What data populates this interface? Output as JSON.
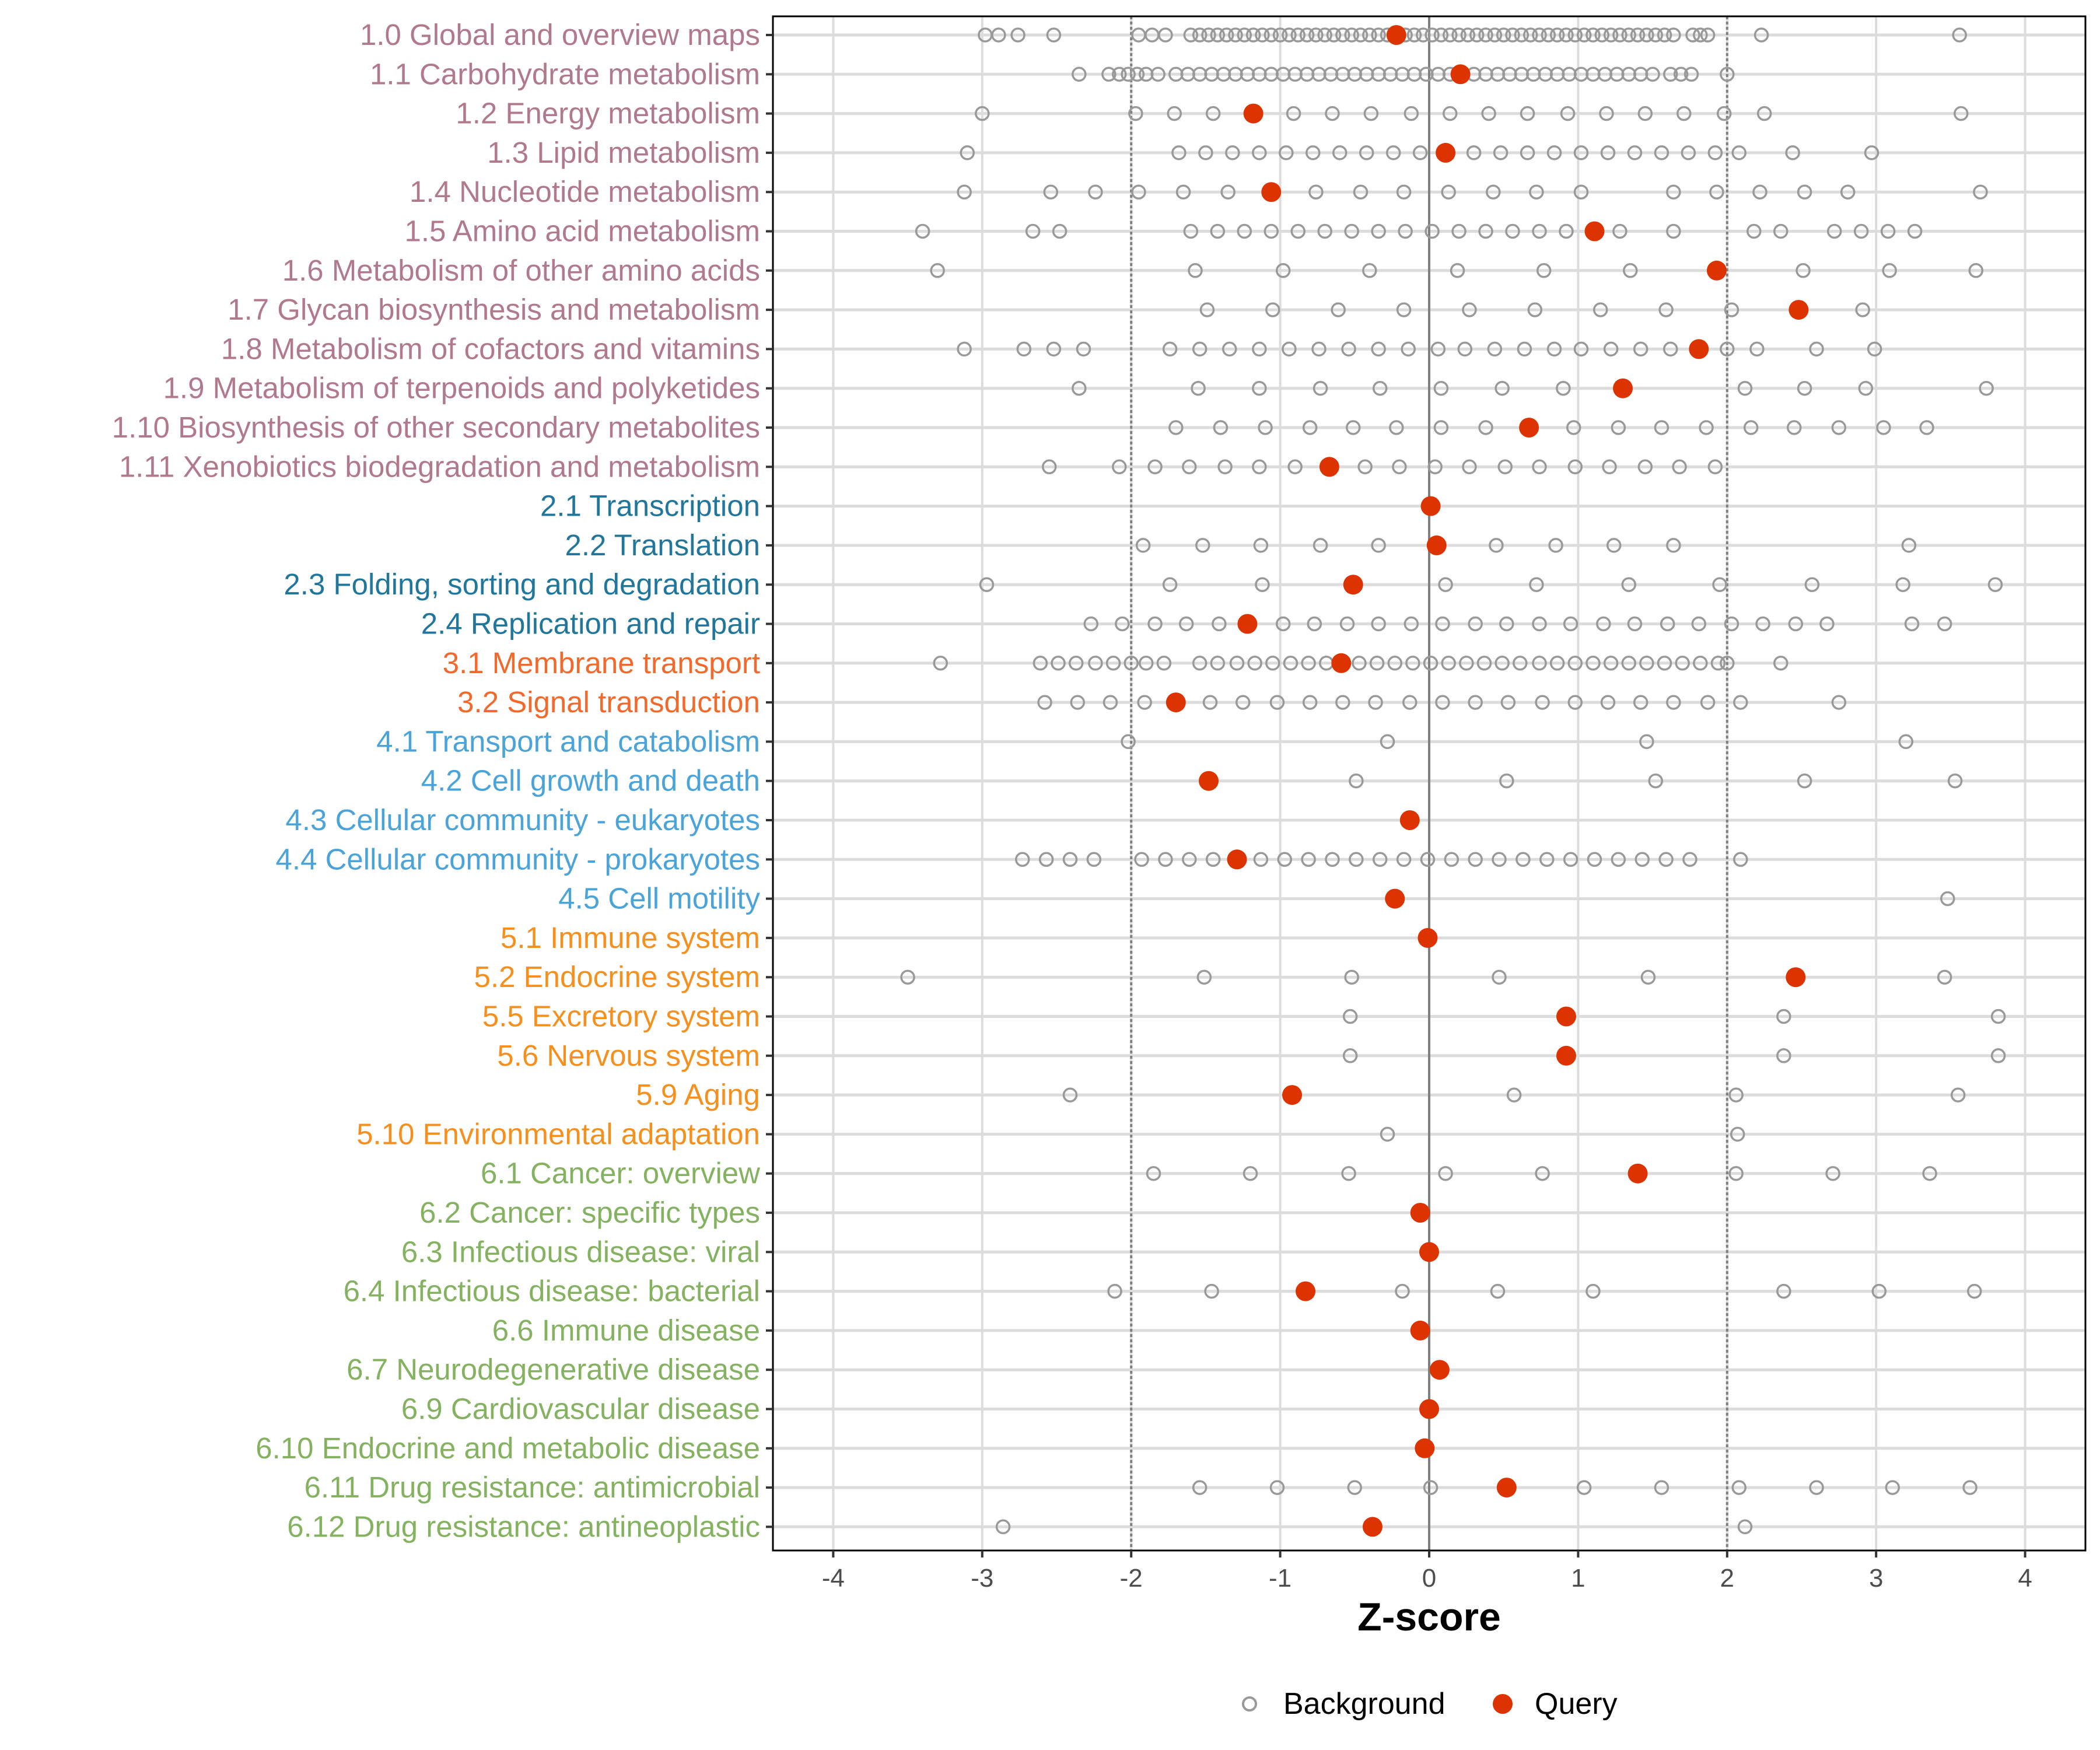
{
  "chart_data": {
    "type": "scatter",
    "title": "",
    "xlabel": "Z-score",
    "ylabel": "",
    "xlim": [
      -4.2,
      4.2
    ],
    "x_ticks": [
      -4,
      -3,
      -2,
      -1,
      0,
      1,
      2,
      3,
      4
    ],
    "x_tick_labels": [
      "-4",
      "-3",
      "-2",
      "-1",
      "0",
      "1",
      "2",
      "3",
      "4"
    ],
    "reference_lines": [
      -2,
      0,
      2
    ],
    "grid": true,
    "legend": {
      "position": "bottom",
      "entries": [
        "Background",
        "Query"
      ]
    },
    "colors": {
      "background_point": "#999999",
      "query_point": "#dd3300",
      "groups": {
        "1": "#b07a8c",
        "2": "#21769b",
        "3": "#f2692c",
        "4": "#4aa3d9",
        "5": "#f5901e",
        "6": "#84b260"
      }
    },
    "categories": [
      {
        "label": "1.0 Global and overview maps",
        "group": "1",
        "query": -0.22,
        "background": [
          -2.98,
          -2.89,
          -2.76,
          -2.52,
          -1.95,
          -1.86,
          -1.77,
          -1.6,
          -1.54,
          -1.48,
          -1.42,
          -1.36,
          -1.3,
          -1.24,
          -1.18,
          -1.12,
          -1.06,
          -1.0,
          -0.94,
          -0.88,
          -0.82,
          -0.76,
          -0.7,
          -0.64,
          -0.58,
          -0.52,
          -0.46,
          -0.4,
          -0.34,
          -0.28,
          -0.22,
          -0.16,
          -0.1,
          -0.04,
          0.02,
          0.08,
          0.14,
          0.2,
          0.26,
          0.32,
          0.38,
          0.44,
          0.5,
          0.56,
          0.62,
          0.68,
          0.74,
          0.8,
          0.86,
          0.92,
          0.98,
          1.04,
          1.1,
          1.16,
          1.22,
          1.28,
          1.34,
          1.4,
          1.46,
          1.52,
          1.58,
          1.64,
          1.77,
          1.82,
          1.87,
          2.23,
          3.56
        ]
      },
      {
        "label": "1.1 Carbohydrate metabolism",
        "group": "1",
        "query": 0.21,
        "background": [
          -2.35,
          -2.15,
          -2.08,
          -2.02,
          -1.96,
          -1.9,
          -1.82,
          -1.7,
          -1.62,
          -1.54,
          -1.46,
          -1.38,
          -1.3,
          -1.22,
          -1.14,
          -1.06,
          -0.98,
          -0.9,
          -0.82,
          -0.74,
          -0.66,
          -0.58,
          -0.5,
          -0.42,
          -0.34,
          -0.26,
          -0.18,
          -0.1,
          -0.02,
          0.06,
          0.14,
          0.22,
          0.3,
          0.38,
          0.46,
          0.54,
          0.62,
          0.7,
          0.78,
          0.86,
          0.94,
          1.02,
          1.1,
          1.18,
          1.26,
          1.34,
          1.42,
          1.5,
          1.62,
          1.69,
          1.76,
          2.0
        ]
      },
      {
        "label": "1.2 Energy metabolism",
        "group": "1",
        "query": -1.18,
        "background": [
          -3.0,
          -1.97,
          -1.71,
          -1.45,
          -1.18,
          -0.91,
          -0.65,
          -0.39,
          -0.12,
          0.14,
          0.4,
          0.66,
          0.93,
          1.19,
          1.45,
          1.71,
          1.98,
          2.25,
          3.57
        ]
      },
      {
        "label": "1.3 Lipid metabolism",
        "group": "1",
        "query": 0.11,
        "background": [
          -3.1,
          -1.68,
          -1.5,
          -1.32,
          -1.14,
          -0.96,
          -0.78,
          -0.6,
          -0.42,
          -0.24,
          -0.06,
          0.12,
          0.3,
          0.48,
          0.66,
          0.84,
          1.02,
          1.2,
          1.38,
          1.56,
          1.74,
          1.92,
          2.08,
          2.44,
          2.97
        ]
      },
      {
        "label": "1.4 Nucleotide metabolism",
        "group": "1",
        "query": -1.06,
        "background": [
          -3.12,
          -2.54,
          -2.24,
          -1.95,
          -1.65,
          -1.35,
          -1.06,
          -0.76,
          -0.46,
          -0.17,
          0.13,
          0.43,
          0.72,
          1.02,
          1.64,
          1.93,
          2.22,
          2.52,
          2.81,
          3.7
        ]
      },
      {
        "label": "1.5 Amino acid metabolism",
        "group": "1",
        "query": 1.11,
        "background": [
          -3.4,
          -2.66,
          -2.48,
          -1.6,
          -1.42,
          -1.24,
          -1.06,
          -0.88,
          -0.7,
          -0.52,
          -0.34,
          -0.16,
          0.02,
          0.2,
          0.38,
          0.56,
          0.74,
          0.92,
          1.28,
          1.64,
          2.18,
          2.36,
          2.72,
          2.9,
          3.08,
          3.26
        ]
      },
      {
        "label": "1.6 Metabolism of other amino acids",
        "group": "1",
        "query": 1.93,
        "background": [
          -3.3,
          -1.57,
          -0.98,
          -0.4,
          0.19,
          0.77,
          1.35,
          1.93,
          2.51,
          3.09,
          3.67
        ]
      },
      {
        "label": "1.7 Glycan biosynthesis and metabolism",
        "group": "1",
        "query": 2.48,
        "background": [
          -1.49,
          -1.05,
          -0.61,
          -0.17,
          0.27,
          0.71,
          1.15,
          1.59,
          2.03,
          2.47,
          2.91
        ]
      },
      {
        "label": "1.8 Metabolism of cofactors and vitamins",
        "group": "1",
        "query": 1.81,
        "background": [
          -3.12,
          -2.72,
          -2.52,
          -2.32,
          -1.74,
          -1.54,
          -1.34,
          -1.14,
          -0.94,
          -0.74,
          -0.54,
          -0.34,
          -0.14,
          0.06,
          0.24,
          0.44,
          0.64,
          0.84,
          1.02,
          1.22,
          1.42,
          1.62,
          2.0,
          2.2,
          2.6,
          2.99
        ]
      },
      {
        "label": "1.9 Metabolism of terpenoids and polyketides",
        "group": "1",
        "query": 1.3,
        "background": [
          -2.35,
          -1.55,
          -1.14,
          -0.73,
          -0.33,
          0.08,
          0.49,
          0.9,
          2.12,
          2.52,
          2.93,
          3.74
        ]
      },
      {
        "label": "1.10 Biosynthesis of other secondary metabolites",
        "group": "1",
        "query": 0.67,
        "background": [
          -1.7,
          -1.4,
          -1.1,
          -0.8,
          -0.51,
          -0.22,
          0.08,
          0.38,
          0.97,
          1.27,
          1.56,
          1.86,
          2.16,
          2.45,
          2.75,
          3.05,
          3.34
        ]
      },
      {
        "label": "1.11 Xenobiotics biodegradation and metabolism",
        "group": "1",
        "query": -0.67,
        "background": [
          -2.55,
          -2.08,
          -1.84,
          -1.61,
          -1.37,
          -1.14,
          -0.9,
          -0.43,
          -0.2,
          0.04,
          0.27,
          0.51,
          0.74,
          0.98,
          1.21,
          1.45,
          1.68,
          1.92
        ]
      },
      {
        "label": "2.1 Transcription",
        "group": "2",
        "query": 0.01,
        "background": []
      },
      {
        "label": "2.2 Translation",
        "group": "2",
        "query": 0.05,
        "background": [
          -1.92,
          -1.52,
          -1.13,
          -0.73,
          -0.34,
          0.45,
          0.85,
          1.24,
          1.64,
          3.22
        ]
      },
      {
        "label": "2.3 Folding, sorting and degradation",
        "group": "2",
        "query": -0.51,
        "background": [
          -2.97,
          -1.74,
          -1.12,
          0.11,
          0.72,
          1.34,
          1.95,
          2.57,
          3.18,
          3.8
        ]
      },
      {
        "label": "2.4 Replication and repair",
        "group": "2",
        "query": -1.22,
        "background": [
          -2.27,
          -2.06,
          -1.84,
          -1.63,
          -1.41,
          -0.98,
          -0.77,
          -0.55,
          -0.34,
          -0.12,
          0.09,
          0.31,
          0.52,
          0.74,
          0.95,
          1.17,
          1.38,
          1.6,
          1.81,
          2.03,
          2.24,
          2.46,
          2.67,
          3.24,
          3.46
        ]
      },
      {
        "label": "3.1 Membrane transport",
        "group": "3",
        "query": -0.59,
        "background": [
          -3.28,
          -2.61,
          -2.49,
          -2.37,
          -2.24,
          -2.12,
          -2.0,
          -1.9,
          -1.78,
          -1.54,
          -1.42,
          -1.29,
          -1.17,
          -1.05,
          -0.93,
          -0.81,
          -0.69,
          -0.47,
          -0.35,
          -0.23,
          -0.11,
          0.01,
          0.13,
          0.25,
          0.37,
          0.49,
          0.61,
          0.74,
          0.86,
          0.98,
          1.1,
          1.22,
          1.34,
          1.46,
          1.58,
          1.7,
          1.82,
          1.94,
          2.0,
          2.36
        ]
      },
      {
        "label": "3.2 Signal transduction",
        "group": "3",
        "query": -1.7,
        "background": [
          -2.58,
          -2.36,
          -2.14,
          -1.91,
          -1.47,
          -1.25,
          -1.02,
          -0.8,
          -0.58,
          -0.36,
          -0.13,
          0.09,
          0.31,
          0.53,
          0.76,
          0.98,
          1.2,
          1.42,
          1.64,
          1.87,
          2.09,
          2.75
        ]
      },
      {
        "label": "4.1 Transport and catabolism",
        "group": "4",
        "query": null,
        "background": [
          -2.02,
          -0.28,
          1.46,
          3.2
        ]
      },
      {
        "label": "4.2 Cell growth and death",
        "group": "4",
        "query": -1.48,
        "background": [
          -0.49,
          0.52,
          1.52,
          2.52,
          3.53
        ]
      },
      {
        "label": "4.3 Cellular community - eukaryotes",
        "group": "4",
        "query": -0.13,
        "background": []
      },
      {
        "label": "4.4 Cellular community - prokaryotes",
        "group": "4",
        "query": -1.29,
        "background": [
          -2.73,
          -2.57,
          -2.41,
          -2.25,
          -1.93,
          -1.77,
          -1.61,
          -1.45,
          -1.13,
          -0.97,
          -0.81,
          -0.65,
          -0.49,
          -0.33,
          -0.17,
          -0.01,
          0.15,
          0.31,
          0.47,
          0.63,
          0.79,
          0.95,
          1.11,
          1.27,
          1.43,
          1.59,
          1.75,
          2.09
        ]
      },
      {
        "label": "4.5 Cell motility",
        "group": "4",
        "query": -0.23,
        "background": [
          3.48
        ]
      },
      {
        "label": "5.1 Immune system",
        "group": "5",
        "query": -0.01,
        "background": []
      },
      {
        "label": "5.2 Endocrine system",
        "group": "5",
        "query": 2.46,
        "background": [
          -3.5,
          -1.51,
          -0.52,
          0.47,
          1.47,
          3.46
        ]
      },
      {
        "label": "5.5 Excretory system",
        "group": "5",
        "query": 0.92,
        "background": [
          -0.53,
          2.38,
          3.82
        ]
      },
      {
        "label": "5.6 Nervous system",
        "group": "5",
        "query": 0.92,
        "background": [
          -0.53,
          2.38,
          3.82
        ]
      },
      {
        "label": "5.9 Aging",
        "group": "5",
        "query": -0.92,
        "background": [
          -2.41,
          0.57,
          2.06,
          3.55
        ]
      },
      {
        "label": "5.10 Environmental adaptation",
        "group": "5",
        "query": null,
        "background": [
          -0.28,
          2.07
        ]
      },
      {
        "label": "6.1 Cancer: overview",
        "group": "6",
        "query": 1.4,
        "background": [
          -1.85,
          -1.2,
          -0.54,
          0.11,
          0.76,
          2.06,
          2.71,
          3.36
        ]
      },
      {
        "label": "6.2 Cancer: specific types",
        "group": "6",
        "query": -0.06,
        "background": []
      },
      {
        "label": "6.3 Infectious disease: viral",
        "group": "6",
        "query": 0.0,
        "background": []
      },
      {
        "label": "6.4 Infectious disease: bacterial",
        "group": "6",
        "query": -0.83,
        "background": [
          -2.11,
          -1.46,
          -0.18,
          0.46,
          1.1,
          2.38,
          3.02,
          3.66
        ]
      },
      {
        "label": "6.6 Immune disease",
        "group": "6",
        "query": -0.06,
        "background": []
      },
      {
        "label": "6.7 Neurodegenerative disease",
        "group": "6",
        "query": 0.07,
        "background": []
      },
      {
        "label": "6.9 Cardiovascular disease",
        "group": "6",
        "query": 0.0,
        "background": []
      },
      {
        "label": "6.10 Endocrine and metabolic disease",
        "group": "6",
        "query": -0.03,
        "background": []
      },
      {
        "label": "6.11 Drug resistance: antimicrobial",
        "group": "6",
        "query": 0.52,
        "background": [
          -1.54,
          -1.02,
          -0.5,
          0.01,
          1.04,
          1.56,
          2.08,
          2.6,
          3.11,
          3.63
        ]
      },
      {
        "label": "6.12 Drug resistance: antineoplastic",
        "group": "6",
        "query": -0.38,
        "background": [
          -2.86,
          2.12
        ]
      }
    ]
  }
}
